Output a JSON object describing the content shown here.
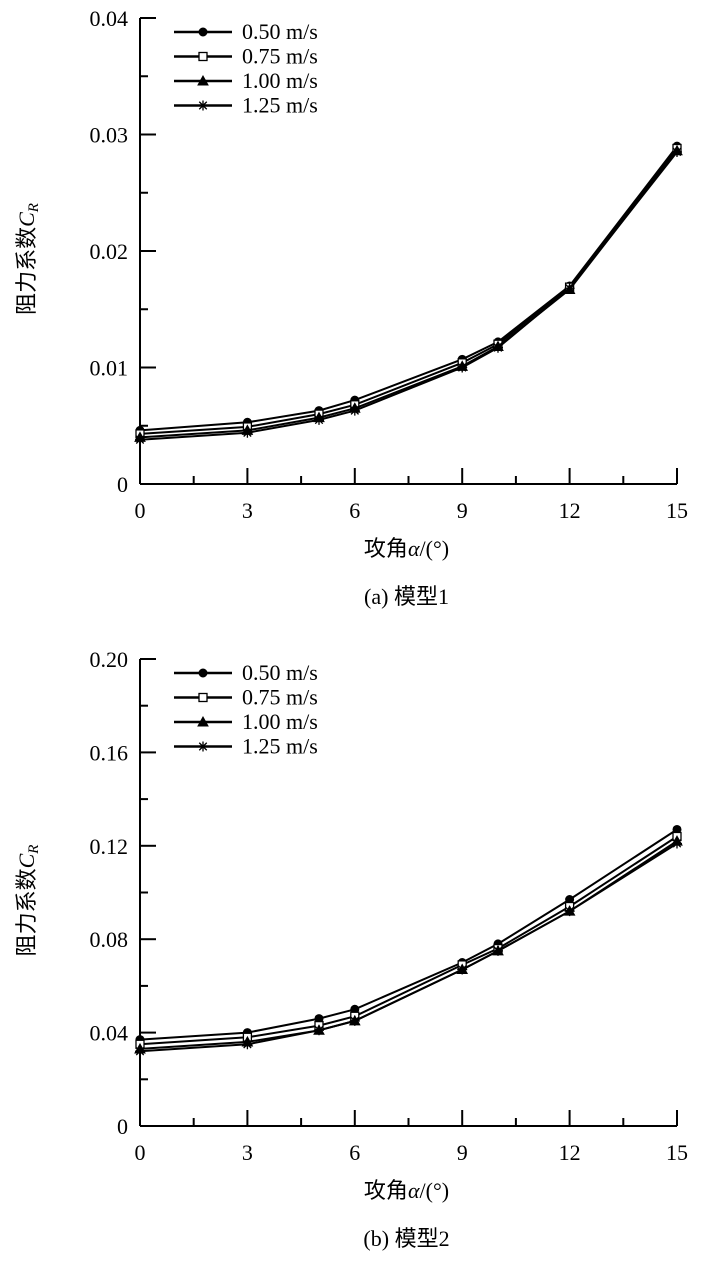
{
  "colors": {
    "line": "#000000",
    "background": "#ffffff"
  },
  "chart_data": [
    {
      "type": "line",
      "caption": "(a) 模型1",
      "xlabel": "攻角α/(°)",
      "ylabel": "阻力系数C_R",
      "ylabel_main": "阻力系数",
      "ylabel_symbol": "C",
      "ylabel_sub": "R",
      "xlabel_main": "攻角",
      "xlabel_symbol": "α",
      "xlabel_unit": "/(°)",
      "xlim": [
        0,
        15
      ],
      "ylim": [
        0,
        0.04
      ],
      "x_ticks": [
        0,
        3,
        6,
        9,
        12,
        15
      ],
      "x_tick_labels": [
        "0",
        "3",
        "6",
        "9",
        "12",
        "15"
      ],
      "y_ticks": [
        0,
        0.01,
        0.02,
        0.03,
        0.04
      ],
      "y_tick_labels": [
        "0",
        "0.01",
        "0.02",
        "0.03",
        "0.04"
      ],
      "x": [
        0,
        3,
        5,
        6,
        9,
        10,
        12,
        15
      ],
      "legend_position": "top-left",
      "series": [
        {
          "name": "0.50 m/s",
          "marker": "filled-circle",
          "values": [
            0.0046,
            0.0053,
            0.0063,
            0.0072,
            0.0107,
            0.0122,
            0.017,
            0.029
          ]
        },
        {
          "name": "0.75 m/s",
          "marker": "open-square",
          "values": [
            0.0043,
            0.0049,
            0.006,
            0.0068,
            0.0104,
            0.012,
            0.0169,
            0.0288
          ]
        },
        {
          "name": "1.00 m/s",
          "marker": "filled-triangle",
          "values": [
            0.004,
            0.0046,
            0.0057,
            0.0065,
            0.0101,
            0.0118,
            0.0167,
            0.0286
          ]
        },
        {
          "name": "1.25 m/s",
          "marker": "asterisk",
          "values": [
            0.0038,
            0.0044,
            0.0055,
            0.0063,
            0.01,
            0.0117,
            0.0168,
            0.0285
          ]
        }
      ]
    },
    {
      "type": "line",
      "caption": "(b) 模型2",
      "xlabel": "攻角α/(°)",
      "ylabel": "阻力系数C_R",
      "ylabel_main": "阻力系数",
      "ylabel_symbol": "C",
      "ylabel_sub": "R",
      "xlabel_main": "攻角",
      "xlabel_symbol": "α",
      "xlabel_unit": "/(°)",
      "xlim": [
        0,
        15
      ],
      "ylim": [
        0,
        0.2
      ],
      "x_ticks": [
        0,
        3,
        6,
        9,
        12,
        15
      ],
      "x_tick_labels": [
        "0",
        "3",
        "6",
        "9",
        "12",
        "15"
      ],
      "y_ticks": [
        0,
        0.04,
        0.08,
        0.12,
        0.16,
        0.2
      ],
      "y_tick_labels": [
        "0",
        "0.04",
        "0.08",
        "0.12",
        "0.16",
        "0.20"
      ],
      "x": [
        0,
        3,
        5,
        6,
        9,
        10,
        12,
        15
      ],
      "legend_position": "top-left",
      "series": [
        {
          "name": "0.50 m/s",
          "marker": "filled-circle",
          "values": [
            0.037,
            0.04,
            0.046,
            0.05,
            0.07,
            0.078,
            0.097,
            0.127
          ]
        },
        {
          "name": "0.75 m/s",
          "marker": "open-square",
          "values": [
            0.035,
            0.038,
            0.043,
            0.047,
            0.069,
            0.076,
            0.094,
            0.124
          ]
        },
        {
          "name": "1.00 m/s",
          "marker": "filled-triangle",
          "values": [
            0.033,
            0.036,
            0.041,
            0.045,
            0.067,
            0.075,
            0.092,
            0.122
          ]
        },
        {
          "name": "1.25 m/s",
          "marker": "asterisk",
          "values": [
            0.032,
            0.035,
            0.041,
            0.045,
            0.067,
            0.075,
            0.092,
            0.121
          ]
        }
      ]
    }
  ]
}
